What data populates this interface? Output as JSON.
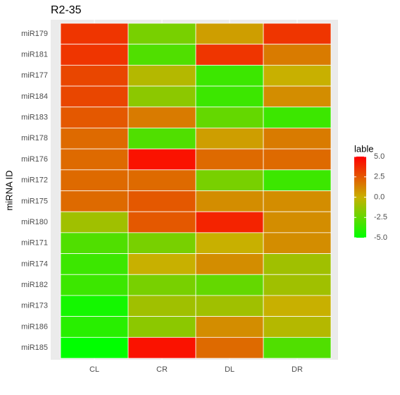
{
  "chart_data": {
    "type": "heatmap",
    "title": "R2-35",
    "y_label": "miRNA ID",
    "x_categories": [
      "CL",
      "CR",
      "DL",
      "DR"
    ],
    "y_categories": [
      "miR179",
      "miR181",
      "miR177",
      "miR184",
      "miR183",
      "miR178",
      "miR176",
      "miR172",
      "miR175",
      "miR180",
      "miR171",
      "miR174",
      "miR182",
      "miR173",
      "miR186",
      "miR185"
    ],
    "values": [
      [
        3.5,
        -2,
        0.5,
        3.5
      ],
      [
        3.5,
        -3,
        3.5,
        1.5
      ],
      [
        3,
        -0.5,
        -3.5,
        0
      ],
      [
        3,
        -1.5,
        -3.5,
        1
      ],
      [
        2.5,
        1.5,
        -2.5,
        -3.5
      ],
      [
        2,
        -3,
        0.5,
        1.5
      ],
      [
        2,
        4.5,
        2,
        2
      ],
      [
        2,
        2,
        -2,
        -3.5
      ],
      [
        2,
        2.5,
        1,
        1
      ],
      [
        -1,
        2.5,
        4,
        1
      ],
      [
        -3,
        -2,
        0,
        1
      ],
      [
        -3.5,
        0,
        1,
        -1
      ],
      [
        -3.5,
        -2,
        -2.5,
        -1
      ],
      [
        -4.5,
        -1,
        -1,
        0
      ],
      [
        -4,
        -1.5,
        1,
        -0.5
      ],
      [
        -5,
        4.5,
        2,
        -3
      ]
    ],
    "legend_title": "lable",
    "zlim": [
      -5,
      5
    ],
    "colors": {
      "low": "#00ff00",
      "mid": "#c8b000",
      "high": "#ff0000"
    },
    "zticks": [
      {
        "value": 5,
        "label": "5.0"
      },
      {
        "value": 2.5,
        "label": "2.5"
      },
      {
        "value": 0,
        "label": "0.0"
      },
      {
        "value": -2.5,
        "label": "-2.5"
      },
      {
        "value": -5,
        "label": "-5.0"
      }
    ]
  }
}
